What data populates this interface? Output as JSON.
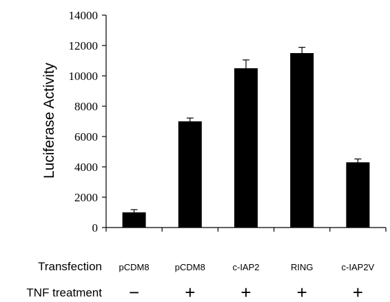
{
  "chart_data": {
    "type": "bar",
    "title": "",
    "xlabel": "",
    "ylabel": "Luciferase Activity",
    "ylim": [
      0,
      14000
    ],
    "yticks": [
      0,
      2000,
      4000,
      6000,
      8000,
      10000,
      12000,
      14000
    ],
    "grid": false,
    "bar_color": "#000000",
    "categories": [
      "pCDM8",
      "pCDM8",
      "c-IAP2",
      "RING",
      "c-IAP2V"
    ],
    "values": [
      1000,
      7000,
      10500,
      11500,
      4300
    ],
    "errors": [
      180,
      220,
      550,
      380,
      220
    ],
    "row_labels": {
      "transfection": "Transfection",
      "tnf": "TNF treatment"
    },
    "tnf_treatment": [
      "−",
      "+",
      "+",
      "+",
      "+"
    ]
  }
}
